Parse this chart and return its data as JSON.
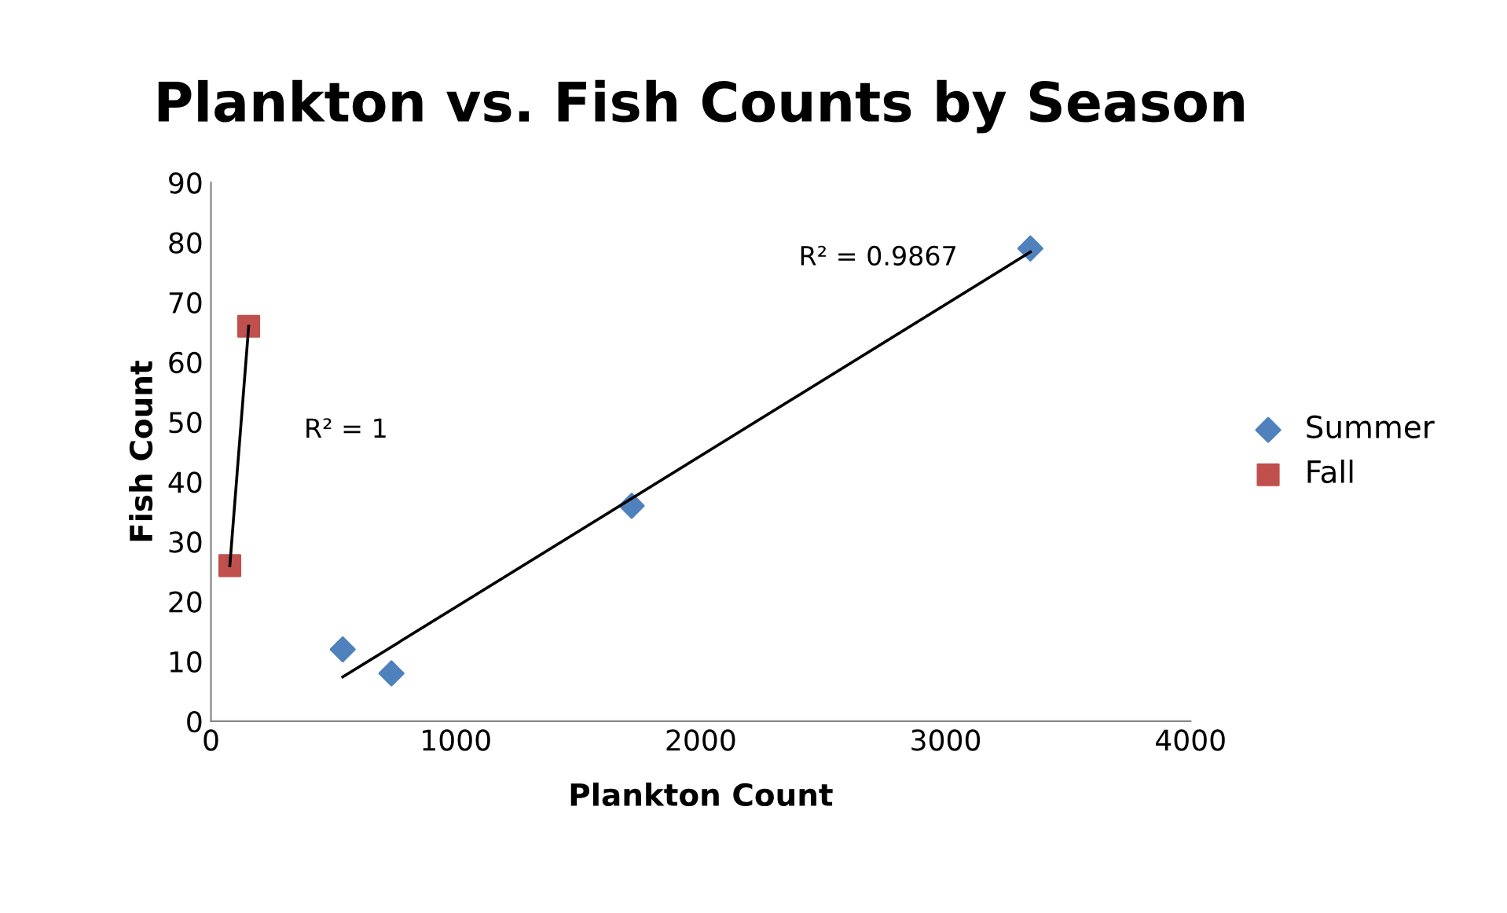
{
  "chart_data": {
    "type": "scatter",
    "title": "Plankton vs. Fish Counts by Season",
    "xlabel": "Plankton Count",
    "ylabel": "Fish Count",
    "series": [
      {
        "name": "Summer",
        "color": "#4f81bd",
        "marker": "diamond",
        "x": [
          538,
          737,
          1718,
          3346
        ],
        "values": [
          12,
          8,
          36,
          79
        ]
      },
      {
        "name": "Fall",
        "color": "#c0504d",
        "marker": "square",
        "x": [
          77,
          154
        ],
        "values": [
          26,
          66
        ]
      },
      {
        "type": "line",
        "color": "#000000",
        "marker": "none",
        "x": [
          538,
          3346
        ],
        "values": [
          7.4,
          78.4
        ]
      },
      {
        "type": "line",
        "color": "#000000",
        "marker": "none",
        "x": [
          77,
          154
        ],
        "values": [
          26,
          66
        ]
      }
    ],
    "annotations": [
      "R² = 0.9867",
      "R² = 1"
    ],
    "xlim": [
      0,
      4000
    ],
    "xticks": [
      0,
      1000,
      2000,
      3000,
      4000
    ],
    "ylim": [
      0,
      90
    ],
    "yticks": [
      0,
      10,
      20,
      30,
      40,
      50,
      60,
      70,
      80,
      90
    ],
    "grid": false,
    "legend": "right"
  }
}
